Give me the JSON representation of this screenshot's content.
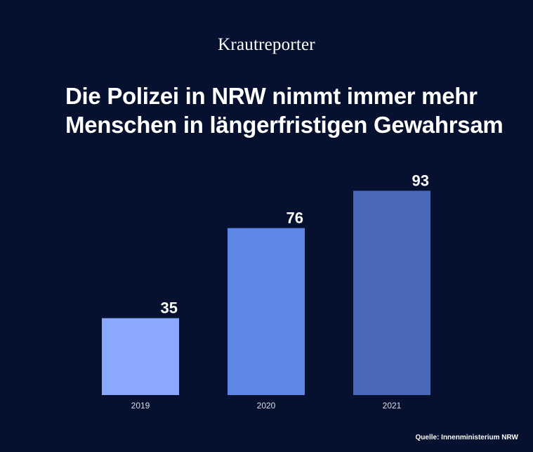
{
  "brand": "Krautreporter",
  "source": "Quelle: Innenministerium NRW",
  "chart_data": {
    "type": "bar",
    "title": "Die Polizei in NRW nimmt immer mehr Menschen in längerfristigen Gewahrsam",
    "categories": [
      "2019",
      "2020",
      "2021"
    ],
    "values": [
      35,
      76,
      93
    ],
    "colors": [
      "#8aa8ff",
      "#5e86e6",
      "#4a68b8"
    ],
    "xlabel": "",
    "ylabel": "",
    "ylim": [
      0,
      100
    ],
    "grid": false,
    "legend": "none"
  }
}
